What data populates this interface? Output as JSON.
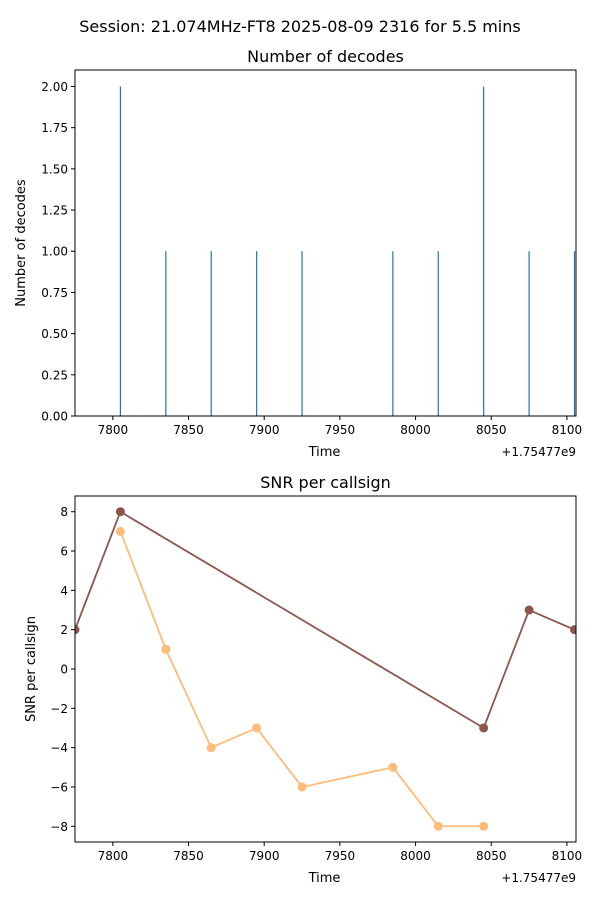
{
  "figure": {
    "suptitle": "Session: 21.074MHz-FT8 2025-08-09 2316 for 5.5 mins"
  },
  "chart_data": [
    {
      "type": "bar",
      "title": "Number of decodes",
      "xlabel": "Time",
      "ylabel": "Number of decodes",
      "x_offset_label": "+1.75477e9",
      "xlim": [
        7775,
        8106
      ],
      "ylim": [
        0,
        2.1
      ],
      "x_ticks": [
        7800,
        7850,
        7900,
        7950,
        8000,
        8050,
        8100
      ],
      "x_tick_labels": [
        "7800",
        "7850",
        "7900",
        "7950",
        "8000",
        "8050",
        "8100"
      ],
      "y_ticks": [
        0,
        0.25,
        0.5,
        0.75,
        1.0,
        1.25,
        1.5,
        1.75,
        2.0
      ],
      "y_tick_labels": [
        "0.00",
        "0.25",
        "0.50",
        "0.75",
        "1.00",
        "1.25",
        "1.50",
        "1.75",
        "2.00"
      ],
      "bar_color": "#1f77b4",
      "x": [
        7805,
        7835,
        7865,
        7895,
        7925,
        7985,
        8015,
        8045,
        8075,
        8105
      ],
      "values": [
        2,
        1,
        1,
        1,
        1,
        1,
        1,
        2,
        1,
        1
      ],
      "grid": false
    },
    {
      "type": "line",
      "title": "SNR per callsign",
      "xlabel": "Time",
      "ylabel": "SNR per callsign",
      "x_offset_label": "+1.75477e9",
      "xlim": [
        7775,
        8106
      ],
      "ylim": [
        -8.8,
        8.8
      ],
      "x_ticks": [
        7800,
        7850,
        7900,
        7950,
        8000,
        8050,
        8100
      ],
      "x_tick_labels": [
        "7800",
        "7850",
        "7900",
        "7950",
        "8000",
        "8050",
        "8100"
      ],
      "y_ticks": [
        -8,
        -6,
        -4,
        -2,
        0,
        2,
        4,
        6,
        8
      ],
      "y_tick_labels": [
        "−8",
        "−6",
        "−4",
        "−2",
        "0",
        "2",
        "4",
        "6",
        "8"
      ],
      "grid": false,
      "series": [
        {
          "color": "#8c564b",
          "x": [
            7775,
            7805,
            8045,
            8075,
            8105
          ],
          "y": [
            2,
            8,
            -3,
            3,
            2
          ]
        },
        {
          "color": "#ffbb78",
          "x": [
            7805,
            7835,
            7865,
            7895,
            7925,
            7985,
            8015,
            8045
          ],
          "y": [
            7,
            1,
            -4,
            -3,
            -6,
            -5,
            -8,
            -8
          ]
        }
      ]
    }
  ]
}
